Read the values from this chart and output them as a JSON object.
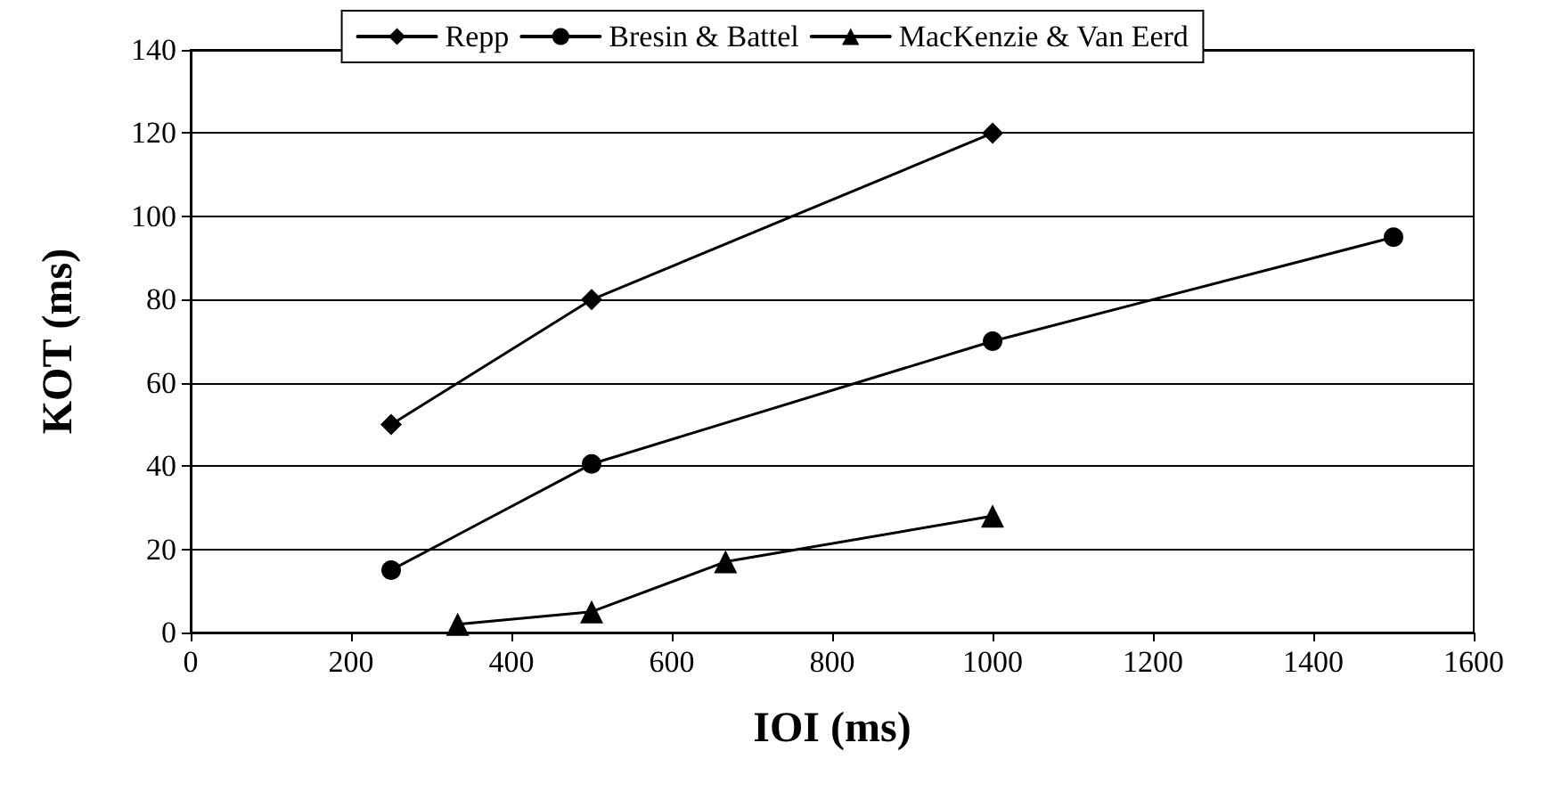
{
  "chart_data": {
    "type": "line",
    "xlabel": "IOI (ms)",
    "ylabel": "KOT (ms)",
    "xlim": [
      0,
      1600
    ],
    "xticks": [
      0,
      200,
      400,
      600,
      800,
      1000,
      1200,
      1400,
      1600
    ],
    "ylim": [
      0,
      140
    ],
    "yticks": [
      0,
      20,
      40,
      60,
      80,
      100,
      120,
      140
    ],
    "grid": "y",
    "legend": "top",
    "line_style": "solid",
    "series": [
      {
        "name": "Repp",
        "color": "#000000",
        "marker": "diamond",
        "x": [
          250,
          500,
          1000
        ],
        "values": [
          50,
          80,
          120
        ]
      },
      {
        "name": "Bresin & Battel",
        "color": "#000000",
        "marker": "circle",
        "x": [
          250,
          500,
          1000,
          1500
        ],
        "values": [
          15,
          40.5,
          70,
          95
        ]
      },
      {
        "name": "MacKenzie & Van Eerd",
        "color": "#000000",
        "marker": "triangle",
        "x": [
          333,
          500,
          667,
          1000
        ],
        "values": [
          2,
          5,
          17,
          28
        ]
      }
    ]
  }
}
